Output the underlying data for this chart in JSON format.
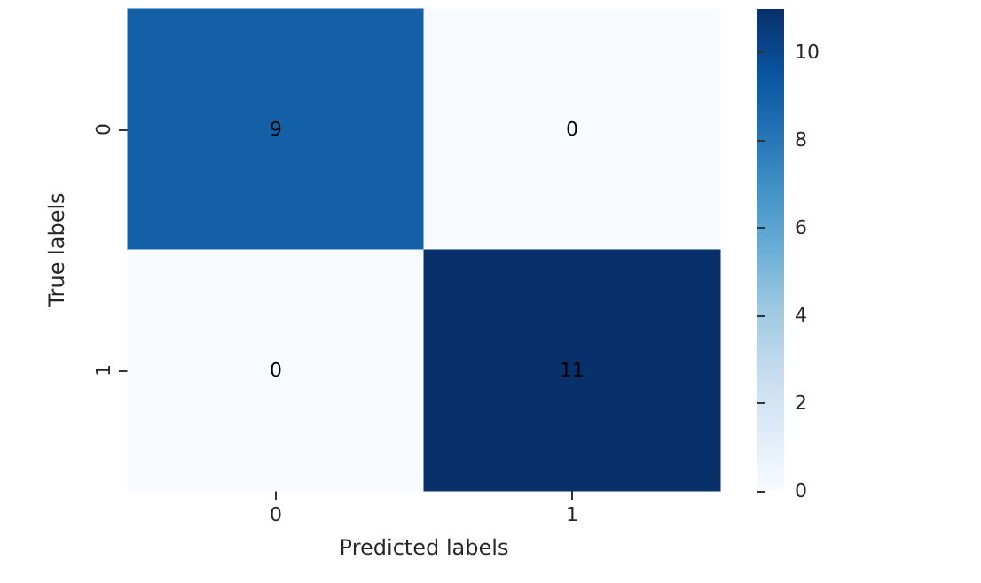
{
  "chart_data": {
    "type": "heatmap",
    "xlabel": "Predicted labels",
    "ylabel": "True labels",
    "categories": [
      "0",
      "1"
    ],
    "y_categories": [
      "0",
      "1"
    ],
    "cells": [
      [
        9,
        0
      ],
      [
        0,
        11
      ]
    ],
    "data_labels": true,
    "clim": [
      0,
      11
    ],
    "cticks": [
      0,
      2,
      4,
      6,
      8,
      10
    ]
  }
}
